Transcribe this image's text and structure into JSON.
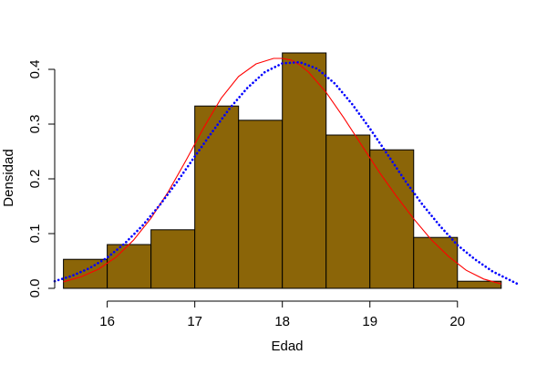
{
  "chart_data": {
    "type": "bar",
    "title": "",
    "xlabel": "Edad",
    "ylabel": "Densidad",
    "xlim": [
      15.4,
      20.7
    ],
    "ylim": [
      0,
      0.43
    ],
    "x_ticks": [
      16,
      17,
      18,
      19,
      20
    ],
    "y_ticks": [
      0.0,
      0.1,
      0.2,
      0.3,
      0.4
    ],
    "y_tick_labels": [
      "0.0",
      "0.1",
      "0.2",
      "0.3",
      "0.4"
    ],
    "grid": false,
    "bar_color": "#8B6508",
    "bins": [
      {
        "x0": 15.5,
        "x1": 16.0,
        "density": 0.053
      },
      {
        "x0": 16.0,
        "x1": 16.5,
        "density": 0.08
      },
      {
        "x0": 16.5,
        "x1": 17.0,
        "density": 0.107
      },
      {
        "x0": 17.0,
        "x1": 17.5,
        "density": 0.333
      },
      {
        "x0": 17.5,
        "x1": 18.0,
        "density": 0.307
      },
      {
        "x0": 18.0,
        "x1": 18.5,
        "density": 0.43
      },
      {
        "x0": 18.5,
        "x1": 19.0,
        "density": 0.28
      },
      {
        "x0": 19.0,
        "x1": 19.5,
        "density": 0.253
      },
      {
        "x0": 19.5,
        "x1": 20.0,
        "density": 0.093
      },
      {
        "x0": 20.0,
        "x1": 20.5,
        "density": 0.013
      }
    ],
    "series": [
      {
        "style": "solid",
        "color": "#FF0000",
        "x": [
          15.5,
          15.7,
          15.9,
          16.1,
          16.3,
          16.5,
          16.7,
          16.9,
          17.1,
          17.3,
          17.5,
          17.7,
          17.9,
          18.0,
          18.1,
          18.2,
          18.3,
          18.5,
          18.7,
          18.9,
          19.1,
          19.3,
          19.5,
          19.7,
          19.9,
          20.1,
          20.3,
          20.5
        ],
        "y": [
          0.012,
          0.021,
          0.035,
          0.057,
          0.088,
          0.128,
          0.177,
          0.234,
          0.293,
          0.347,
          0.387,
          0.41,
          0.42,
          0.42,
          0.417,
          0.408,
          0.395,
          0.358,
          0.312,
          0.263,
          0.214,
          0.169,
          0.127,
          0.089,
          0.058,
          0.033,
          0.017,
          0.008
        ]
      },
      {
        "style": "dotted",
        "color": "#0000FF",
        "x": [
          15.4,
          15.6,
          15.8,
          16.0,
          16.2,
          16.4,
          16.6,
          16.8,
          17.0,
          17.2,
          17.4,
          17.6,
          17.8,
          18.0,
          18.2,
          18.4,
          18.6,
          18.8,
          19.0,
          19.2,
          19.4,
          19.6,
          19.8,
          20.0,
          20.2,
          20.4,
          20.7
        ],
        "y": [
          0.013,
          0.023,
          0.037,
          0.056,
          0.082,
          0.114,
          0.152,
          0.195,
          0.241,
          0.286,
          0.329,
          0.366,
          0.395,
          0.411,
          0.413,
          0.401,
          0.374,
          0.336,
          0.292,
          0.245,
          0.197,
          0.153,
          0.114,
          0.079,
          0.053,
          0.031,
          0.007
        ]
      }
    ]
  }
}
